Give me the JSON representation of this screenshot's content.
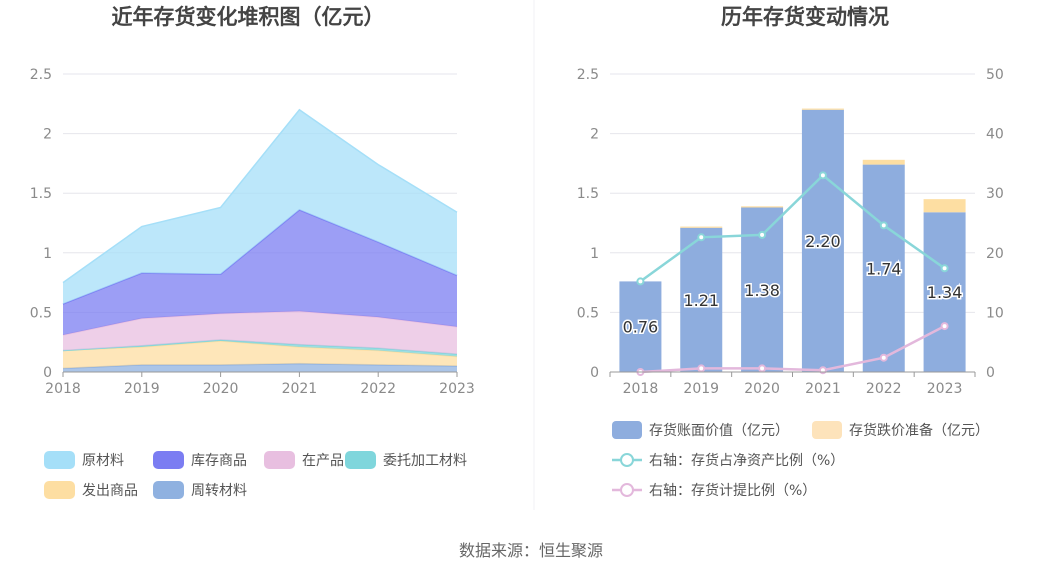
{
  "source_text": "数据来源：恒生聚源",
  "colors": {
    "raw_material": "#a5dff8",
    "inventory_goods": "#7b7df2",
    "wip": "#e8bfe0",
    "consigned": "#7fd6dc",
    "shipped": "#fddea2",
    "turnover": "#8fb1e0",
    "bar_book": "#8eadde",
    "bar_reserve": "#fde3bb",
    "line_ratio": "#89d6d9",
    "line_provision": "#e3b8dc",
    "grid": "#e6e6ec",
    "axis": "#999999"
  },
  "chart_data": [
    {
      "type": "area",
      "title": "近年存货变化堆积图（亿元）",
      "categories": [
        "2018",
        "2019",
        "2020",
        "2021",
        "2022",
        "2023"
      ],
      "yticks": [
        "0",
        "0.5",
        "1",
        "1.5",
        "2",
        "2.5"
      ],
      "ylim": [
        0,
        2.5
      ],
      "stacked": true,
      "series": [
        {
          "name": "周转材料",
          "color_key": "turnover",
          "values": [
            0.03,
            0.06,
            0.06,
            0.07,
            0.06,
            0.05
          ]
        },
        {
          "name": "发出商品",
          "color_key": "shipped",
          "values": [
            0.15,
            0.15,
            0.2,
            0.14,
            0.12,
            0.08
          ]
        },
        {
          "name": "委托加工材料",
          "color_key": "consigned",
          "values": [
            0.0,
            0.01,
            0.01,
            0.02,
            0.02,
            0.02
          ]
        },
        {
          "name": "在产品",
          "color_key": "wip",
          "values": [
            0.13,
            0.23,
            0.22,
            0.28,
            0.26,
            0.23
          ]
        },
        {
          "name": "库存商品",
          "color_key": "inventory_goods",
          "values": [
            0.26,
            0.38,
            0.33,
            0.85,
            0.63,
            0.43
          ]
        },
        {
          "name": "原材料",
          "color_key": "raw_material",
          "values": [
            0.18,
            0.39,
            0.56,
            0.84,
            0.65,
            0.53
          ]
        }
      ],
      "legend": [
        {
          "name": "原材料",
          "color_key": "raw_material"
        },
        {
          "name": "库存商品",
          "color_key": "inventory_goods"
        },
        {
          "name": "在产品",
          "color_key": "wip"
        },
        {
          "name": "委托加工材料",
          "color_key": "consigned"
        },
        {
          "name": "发出商品",
          "color_key": "shipped"
        },
        {
          "name": "周转材料",
          "color_key": "turnover"
        }
      ],
      "legend_placement": "bottom",
      "grid": true
    },
    {
      "type": "bar",
      "title": "历年存货变动情况",
      "categories": [
        "2018",
        "2019",
        "2020",
        "2021",
        "2022",
        "2023"
      ],
      "yticks_left": [
        "0",
        "0.5",
        "1",
        "1.5",
        "2",
        "2.5"
      ],
      "yticks_right": [
        "0",
        "10",
        "20",
        "30",
        "40",
        "50"
      ],
      "ylim_left": [
        0,
        2.5
      ],
      "ylim_right": [
        0,
        50
      ],
      "stacked": true,
      "series": [
        {
          "name": "存货账面价值（亿元）",
          "color_key": "bar_book",
          "axis": "left",
          "values": [
            0.76,
            1.21,
            1.38,
            2.2,
            1.74,
            1.34
          ],
          "labels": [
            "0.76",
            "1.21",
            "1.38",
            "2.20",
            "1.74",
            "1.34"
          ]
        },
        {
          "name": "存货跌价准备（亿元）",
          "color_key": "bar_reserve",
          "axis": "left",
          "values": [
            0.0,
            0.01,
            0.01,
            0.01,
            0.04,
            0.11
          ]
        },
        {
          "name": "右轴：存货占净资产比例（%）",
          "color_key": "line_ratio",
          "axis": "right",
          "type": "line",
          "values": [
            15.2,
            22.6,
            23.0,
            33.0,
            24.6,
            17.4
          ]
        },
        {
          "name": "右轴：存货计提比例（%）",
          "color_key": "line_provision",
          "axis": "right",
          "type": "line",
          "values": [
            0.0,
            0.6,
            0.6,
            0.3,
            2.4,
            7.7
          ]
        }
      ],
      "legend_placement": "bottom",
      "grid": true
    }
  ]
}
